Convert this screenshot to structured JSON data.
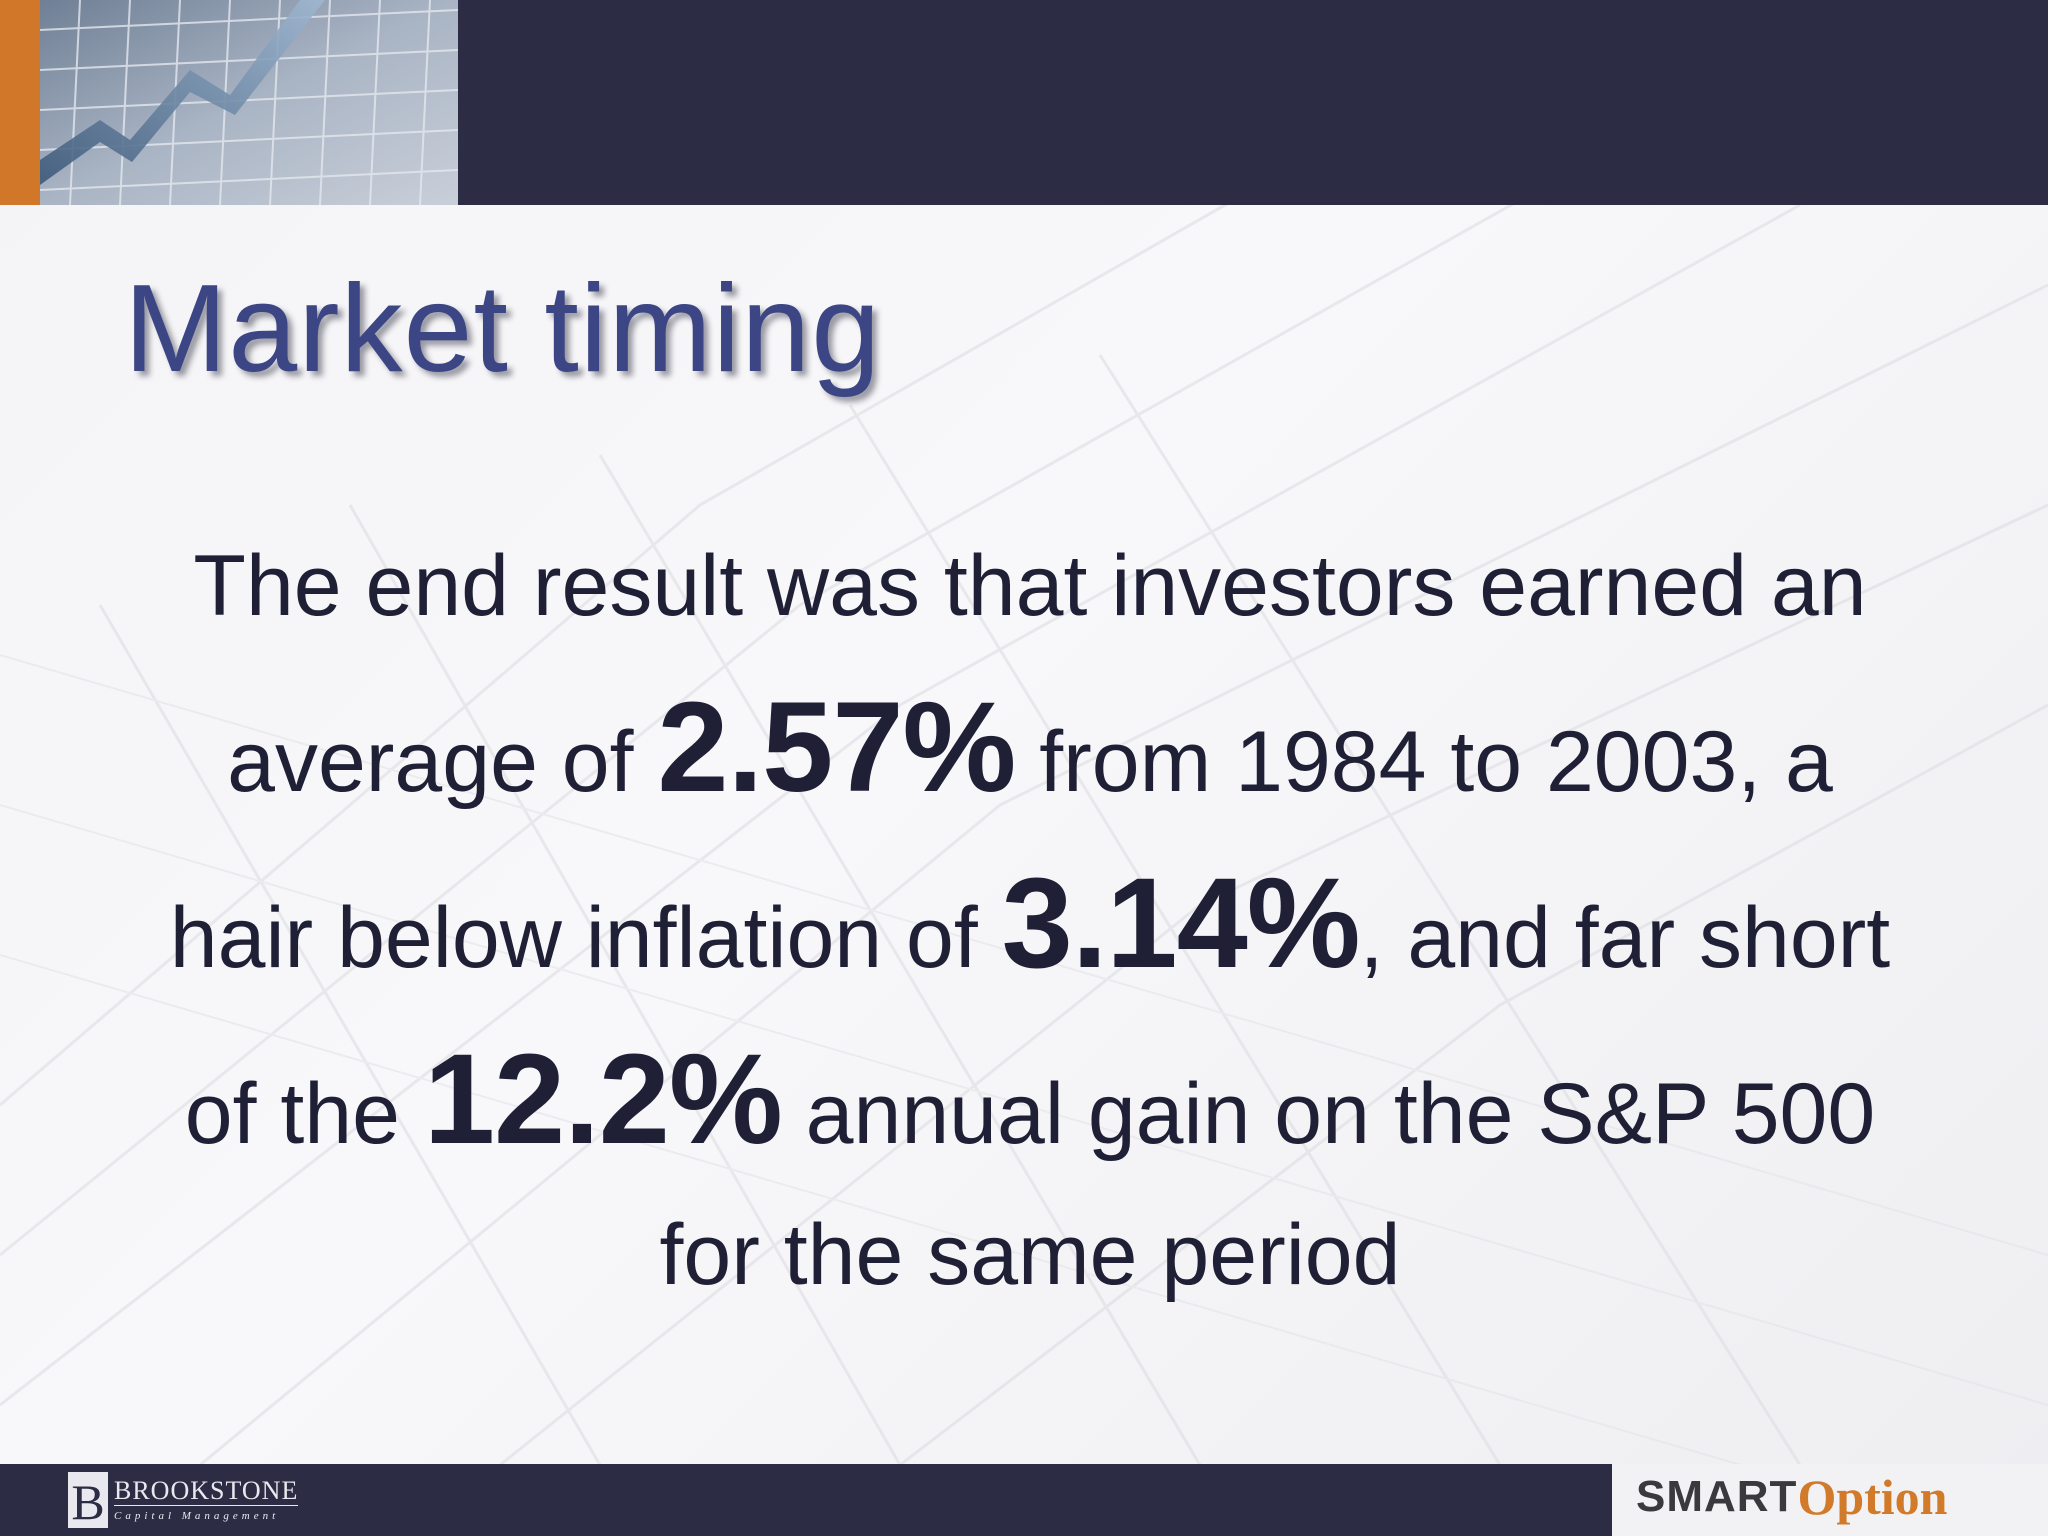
{
  "slide": {
    "title": "Market timing",
    "body": {
      "line1": "The end result was that investors earned an",
      "line2_pre": "average of ",
      "highlight1": "2.57%",
      "line2_post": " from 1984 to 2003, a",
      "line3_pre": "hair below inflation of ",
      "highlight2": "3.14%",
      "line3_post": ", and far short",
      "line4_pre": "of the ",
      "highlight3": "12.2%",
      "line4_post": " annual gain on the S&P 500",
      "line5": "for the same period"
    }
  },
  "footer": {
    "left_logo": {
      "name": "BROOKSTONE",
      "tagline": "Capital Management"
    },
    "right_logo": {
      "smart": "SMART",
      "option": "Option"
    }
  },
  "colors": {
    "header_band": "#2c2d45",
    "accent_orange": "#d1772a",
    "title": "#3d4685",
    "body_text": "#1f2036"
  }
}
